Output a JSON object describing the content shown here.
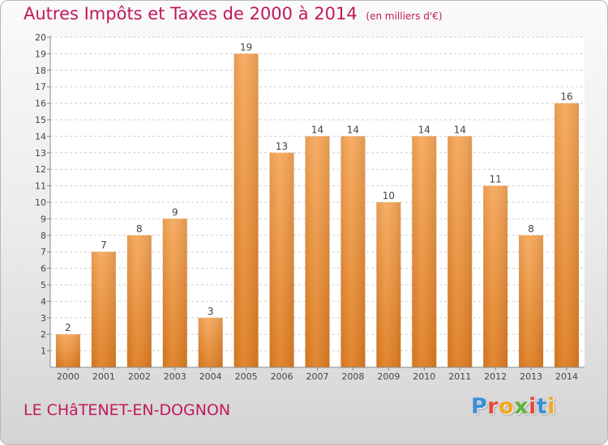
{
  "title": "Autres Impôts et Taxes de 2000 à 2014",
  "subtitle": "(en milliers d'€)",
  "commune": "LE CHâTENET-EN-DOGNON",
  "logo": {
    "text": "Proxiti",
    "colors": [
      "#3a8fd6",
      "#e24a3b",
      "#f2a81d",
      "#5db33a",
      "#e24a3b",
      "#3a8fd6",
      "#f2a81d"
    ]
  },
  "colors": {
    "accent": "#c2185b",
    "bar_top": "#f7a85a",
    "bar_bottom": "#e07e22"
  },
  "chart_data": {
    "type": "bar",
    "categories": [
      "2000",
      "2001",
      "2002",
      "2003",
      "2004",
      "2005",
      "2006",
      "2007",
      "2008",
      "2009",
      "2010",
      "2011",
      "2012",
      "2013",
      "2014"
    ],
    "values": [
      2,
      7,
      8,
      9,
      3,
      19,
      13,
      14,
      14,
      10,
      14,
      14,
      11,
      8,
      16
    ],
    "title": "Autres Impôts et Taxes de 2000 à 2014",
    "subtitle": "(en milliers d'€)",
    "xlabel": "",
    "ylabel": "",
    "ylim": [
      0,
      20
    ],
    "yticks": [
      1,
      2,
      3,
      4,
      5,
      6,
      7,
      8,
      9,
      10,
      11,
      12,
      13,
      14,
      15,
      16,
      17,
      18,
      19,
      20
    ],
    "grid": "horizontal dashed",
    "legend": "none"
  }
}
